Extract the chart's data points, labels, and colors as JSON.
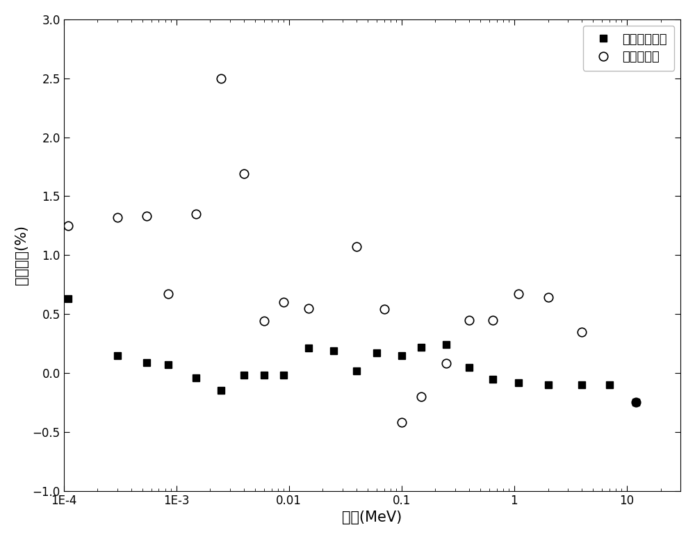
{
  "title": "",
  "xlabel": "能量(MeV)",
  "ylabel": "相对误差(%)",
  "xlim": [
    0.0001,
    30
  ],
  "ylim": [
    -1.0,
    3.0
  ],
  "yticks": [
    -1.0,
    -0.5,
    0.0,
    0.5,
    1.0,
    1.5,
    2.0,
    2.5,
    3.0
  ],
  "hybrid_x": [
    0.00011,
    0.0003,
    0.00055,
    0.00085,
    0.0015,
    0.0025,
    0.004,
    0.006,
    0.009,
    0.015,
    0.025,
    0.04,
    0.06,
    0.1,
    0.15,
    0.25,
    0.4,
    0.65,
    1.1,
    2.0,
    4.0,
    7.0,
    12.0
  ],
  "hybrid_y": [
    0.63,
    0.15,
    0.09,
    0.07,
    -0.04,
    -0.15,
    -0.02,
    -0.02,
    -0.02,
    0.21,
    0.19,
    0.02,
    0.17,
    0.15,
    0.22,
    0.24,
    0.05,
    -0.05,
    -0.08,
    -0.1,
    -0.1,
    -0.1,
    -0.25
  ],
  "deterministic_x": [
    0.00011,
    0.0003,
    0.00055,
    0.00085,
    0.0015,
    0.0025,
    0.004,
    0.006,
    0.009,
    0.015,
    0.04,
    0.07,
    0.1,
    0.15,
    0.25,
    0.4,
    0.65,
    1.1,
    2.0,
    4.0,
    12.0
  ],
  "deterministic_y": [
    1.25,
    1.32,
    1.33,
    0.67,
    1.35,
    2.5,
    1.69,
    0.44,
    0.6,
    0.55,
    1.07,
    0.54,
    -0.42,
    -0.2,
    0.08,
    0.45,
    0.45,
    0.67,
    0.64,
    0.35,
    -0.25
  ],
  "legend_hybrid": "混合计算方法",
  "legend_deterministic": "确定论方法",
  "background_color": "#ffffff",
  "hybrid_color": "#000000",
  "deterministic_color": "#000000",
  "marker_size_hybrid": 7,
  "marker_size_deterministic": 9
}
